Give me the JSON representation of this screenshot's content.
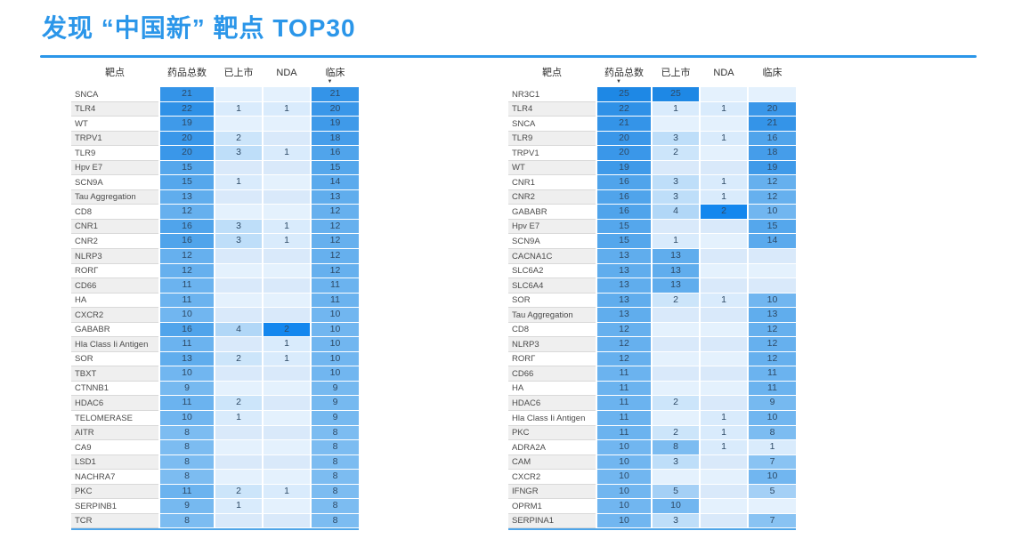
{
  "title": "发现 “中国新” 靶点 TOP30",
  "style": {
    "accent_color": "#2B96E9",
    "heatmap_low_color": "#E6F2FD",
    "heatmap_mid_color": "#7CBCF1",
    "heatmap_high_color": "#1E88E5",
    "nda_highlight_color": "#1487EE",
    "empty_cell_even": "#E4F1FD",
    "empty_cell_odd": "#D9E9FA",
    "zebra_even": "#FFFFFF",
    "zebra_odd": "#EFEFEF",
    "table_bottom_border": "#4FA5E8"
  },
  "sort_icon": "▼",
  "chart_data": [
    {
      "type": "table",
      "title": "靶点 TOP30 — 按临床排序",
      "columns": [
        "靶点",
        "药品总数",
        "已上市",
        "NDA",
        "临床"
      ],
      "sorted_column": "临床",
      "sorted_column_index": 4,
      "sort_direction": "desc",
      "heatmap": {
        "value_domain": [
          0,
          25
        ],
        "note": "cell shade scales with value; NDA=2 highlighted"
      },
      "rows": [
        [
          "SNCA",
          21,
          null,
          null,
          21
        ],
        [
          "TLR4",
          22,
          1,
          1,
          20
        ],
        [
          "WT",
          19,
          null,
          null,
          19
        ],
        [
          "TRPV1",
          20,
          2,
          null,
          18
        ],
        [
          "TLR9",
          20,
          3,
          1,
          16
        ],
        [
          "Hpv E7",
          15,
          null,
          null,
          15
        ],
        [
          "SCN9A",
          15,
          1,
          null,
          14
        ],
        [
          "Tau Aggregation",
          13,
          null,
          null,
          13
        ],
        [
          "CD8",
          12,
          null,
          null,
          12
        ],
        [
          "CNR1",
          16,
          3,
          1,
          12
        ],
        [
          "CNR2",
          16,
          3,
          1,
          12
        ],
        [
          "NLRP3",
          12,
          null,
          null,
          12
        ],
        [
          "RORΓ",
          12,
          null,
          null,
          12
        ],
        [
          "CD66",
          11,
          null,
          null,
          11
        ],
        [
          "HA",
          11,
          null,
          null,
          11
        ],
        [
          "CXCR2",
          10,
          null,
          null,
          10
        ],
        [
          "GABABR",
          16,
          4,
          2,
          10
        ],
        [
          "Hla Class Ii Antigen",
          11,
          null,
          1,
          10
        ],
        [
          "SOR",
          13,
          2,
          1,
          10
        ],
        [
          "TBXT",
          10,
          null,
          null,
          10
        ],
        [
          "CTNNB1",
          9,
          null,
          null,
          9
        ],
        [
          "HDAC6",
          11,
          2,
          null,
          9
        ],
        [
          "TELOMERASE",
          10,
          1,
          null,
          9
        ],
        [
          "AITR",
          8,
          null,
          null,
          8
        ],
        [
          "CA9",
          8,
          null,
          null,
          8
        ],
        [
          "LSD1",
          8,
          null,
          null,
          8
        ],
        [
          "NACHRA7",
          8,
          null,
          null,
          8
        ],
        [
          "PKC",
          11,
          2,
          1,
          8
        ],
        [
          "SERPINB1",
          9,
          1,
          null,
          8
        ],
        [
          "TCR",
          8,
          null,
          null,
          8
        ]
      ]
    },
    {
      "type": "table",
      "title": "靶点 TOP30 — 按药品总数排序",
      "columns": [
        "靶点",
        "药品总数",
        "已上市",
        "NDA",
        "临床"
      ],
      "sorted_column": "药品总数",
      "sorted_column_index": 1,
      "sort_direction": "desc",
      "heatmap": {
        "value_domain": [
          0,
          25
        ],
        "note": "cell shade scales with value; NDA=2 highlighted"
      },
      "rows": [
        [
          "NR3C1",
          25,
          25,
          null,
          null
        ],
        [
          "TLR4",
          22,
          1,
          1,
          20
        ],
        [
          "SNCA",
          21,
          null,
          null,
          21
        ],
        [
          "TLR9",
          20,
          3,
          1,
          16
        ],
        [
          "TRPV1",
          20,
          2,
          null,
          18
        ],
        [
          "WT",
          19,
          null,
          null,
          19
        ],
        [
          "CNR1",
          16,
          3,
          1,
          12
        ],
        [
          "CNR2",
          16,
          3,
          1,
          12
        ],
        [
          "GABABR",
          16,
          4,
          2,
          10
        ],
        [
          "Hpv E7",
          15,
          null,
          null,
          15
        ],
        [
          "SCN9A",
          15,
          1,
          null,
          14
        ],
        [
          "CACNA1C",
          13,
          13,
          null,
          null
        ],
        [
          "SLC6A2",
          13,
          13,
          null,
          null
        ],
        [
          "SLC6A4",
          13,
          13,
          null,
          null
        ],
        [
          "SOR",
          13,
          2,
          1,
          10
        ],
        [
          "Tau Aggregation",
          13,
          null,
          null,
          13
        ],
        [
          "CD8",
          12,
          null,
          null,
          12
        ],
        [
          "NLRP3",
          12,
          null,
          null,
          12
        ],
        [
          "RORΓ",
          12,
          null,
          null,
          12
        ],
        [
          "CD66",
          11,
          null,
          null,
          11
        ],
        [
          "HA",
          11,
          null,
          null,
          11
        ],
        [
          "HDAC6",
          11,
          2,
          null,
          9
        ],
        [
          "Hla Class Ii Antigen",
          11,
          null,
          1,
          10
        ],
        [
          "PKC",
          11,
          2,
          1,
          8
        ],
        [
          "ADRA2A",
          10,
          8,
          1,
          1
        ],
        [
          "CAM",
          10,
          3,
          null,
          7
        ],
        [
          "CXCR2",
          10,
          null,
          null,
          10
        ],
        [
          "IFNGR",
          10,
          5,
          null,
          5
        ],
        [
          "OPRM1",
          10,
          10,
          null,
          null
        ],
        [
          "SERPINA1",
          10,
          3,
          null,
          7
        ]
      ]
    }
  ]
}
